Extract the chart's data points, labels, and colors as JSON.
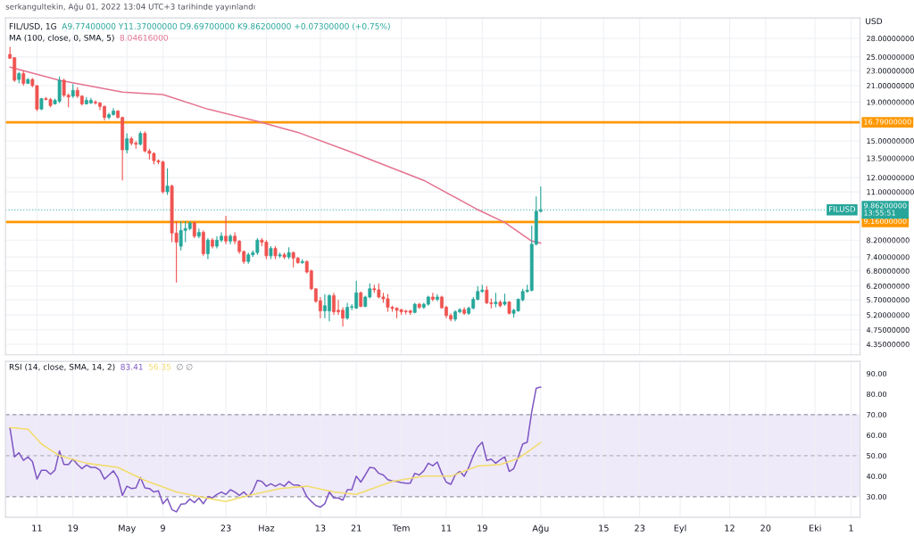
{
  "chart_data": [
    {
      "type": "candlestick",
      "title": "FIL/USD, 1G",
      "ylabel": "USD",
      "annotations": [
        "serkangultekin, Ağu 01, 2022 13:04 UTC+3 tarihinde yayınlandı",
        "A9.77400000 Y11.37000000 D9.69700000 K9.86200000 +0.07300000 (+0.75%)",
        "MA (100, close, 0, SMA, 5)",
        "8.04616000",
        {
          "text": "FILUSD",
          "x": "2022-10-10",
          "y": 9.862
        }
      ],
      "x": [
        "2022-04-05",
        "2022-04-06",
        "2022-04-07",
        "2022-04-08",
        "2022-04-09",
        "2022-04-10",
        "2022-04-11",
        "2022-04-12",
        "2022-04-13",
        "2022-04-14",
        "2022-04-15",
        "2022-04-16",
        "2022-04-17",
        "2022-04-18",
        "2022-04-19",
        "2022-04-20",
        "2022-04-21",
        "2022-04-22",
        "2022-04-23",
        "2022-04-24",
        "2022-04-25",
        "2022-04-26",
        "2022-04-27",
        "2022-04-28",
        "2022-04-29",
        "2022-04-30",
        "2022-05-01",
        "2022-05-02",
        "2022-05-03",
        "2022-05-04",
        "2022-05-05",
        "2022-05-06",
        "2022-05-07",
        "2022-05-08",
        "2022-05-09",
        "2022-05-10",
        "2022-05-11",
        "2022-05-12",
        "2022-05-13",
        "2022-05-14",
        "2022-05-15",
        "2022-05-16",
        "2022-05-17",
        "2022-05-18",
        "2022-05-19",
        "2022-05-20",
        "2022-05-21",
        "2022-05-22",
        "2022-05-23",
        "2022-05-24",
        "2022-05-25",
        "2022-05-26",
        "2022-05-27",
        "2022-05-28",
        "2022-05-29",
        "2022-05-30",
        "2022-05-31",
        "2022-06-01",
        "2022-06-02",
        "2022-06-03",
        "2022-06-04",
        "2022-06-05",
        "2022-06-06",
        "2022-06-07",
        "2022-06-08",
        "2022-06-09",
        "2022-06-10",
        "2022-06-11",
        "2022-06-12",
        "2022-06-13",
        "2022-06-14",
        "2022-06-15",
        "2022-06-16",
        "2022-06-17",
        "2022-06-18",
        "2022-06-19",
        "2022-06-20",
        "2022-06-21",
        "2022-06-22",
        "2022-06-23",
        "2022-06-24",
        "2022-06-25",
        "2022-06-26",
        "2022-06-27",
        "2022-06-28",
        "2022-06-29",
        "2022-06-30",
        "2022-07-01",
        "2022-07-02",
        "2022-07-03",
        "2022-07-04",
        "2022-07-05",
        "2022-07-06",
        "2022-07-07",
        "2022-07-08",
        "2022-07-09",
        "2022-07-10",
        "2022-07-11",
        "2022-07-12",
        "2022-07-13",
        "2022-07-14",
        "2022-07-15",
        "2022-07-16",
        "2022-07-17",
        "2022-07-18",
        "2022-07-19",
        "2022-07-20",
        "2022-07-21",
        "2022-07-22",
        "2022-07-23",
        "2022-07-24",
        "2022-07-25",
        "2022-07-26",
        "2022-07-27",
        "2022-07-28",
        "2022-07-29",
        "2022-07-30",
        "2022-07-31",
        "2022-08-01"
      ],
      "ohlc": [
        [
          25.4,
          26.6,
          24.7,
          24.8
        ],
        [
          24.9,
          25.0,
          21.5,
          21.7
        ],
        [
          21.8,
          22.8,
          21.3,
          22.6
        ],
        [
          22.6,
          23.0,
          21.0,
          21.3
        ],
        [
          21.3,
          22.0,
          21.2,
          21.8
        ],
        [
          21.8,
          22.0,
          20.8,
          21.0
        ],
        [
          21.0,
          21.1,
          18.0,
          18.2
        ],
        [
          18.2,
          19.5,
          18.1,
          19.4
        ],
        [
          19.4,
          19.6,
          19.2,
          19.3
        ],
        [
          19.3,
          19.5,
          18.4,
          18.6
        ],
        [
          18.8,
          19.4,
          18.7,
          19.2
        ],
        [
          19.1,
          22.2,
          18.9,
          21.7
        ],
        [
          21.7,
          21.9,
          19.6,
          19.8
        ],
        [
          19.8,
          20.0,
          18.4,
          19.6
        ],
        [
          19.7,
          21.2,
          19.5,
          20.4
        ],
        [
          20.4,
          20.8,
          19.5,
          19.7
        ],
        [
          19.7,
          19.8,
          18.6,
          18.8
        ],
        [
          18.8,
          19.6,
          18.7,
          19.2
        ],
        [
          18.9,
          19.5,
          18.8,
          19.2
        ],
        [
          19.0,
          19.2,
          18.7,
          18.9
        ],
        [
          18.9,
          19.0,
          18.1,
          18.5
        ],
        [
          18.5,
          18.6,
          17.0,
          17.3
        ],
        [
          17.3,
          17.8,
          17.1,
          17.6
        ],
        [
          17.6,
          18.3,
          17.5,
          18.0
        ],
        [
          18.0,
          18.1,
          17.2,
          17.3
        ],
        [
          17.3,
          17.4,
          11.8,
          14.2
        ],
        [
          14.2,
          15.7,
          13.9,
          15.2
        ],
        [
          15.2,
          15.4,
          14.6,
          14.8
        ],
        [
          14.8,
          15.0,
          14.3,
          14.7
        ],
        [
          14.7,
          15.9,
          14.6,
          15.7
        ],
        [
          15.7,
          15.9,
          14.0,
          14.1
        ],
        [
          14.1,
          14.3,
          13.4,
          13.9
        ],
        [
          13.9,
          14.0,
          13.0,
          13.3
        ],
        [
          13.3,
          13.4,
          13.0,
          13.2
        ],
        [
          13.2,
          13.3,
          10.9,
          11.0
        ],
        [
          11.0,
          12.7,
          10.8,
          11.4
        ],
        [
          11.4,
          11.5,
          8.1,
          8.56
        ],
        [
          8.56,
          9.2,
          6.33,
          8.1
        ],
        [
          7.9,
          9.2,
          7.7,
          8.7
        ],
        [
          8.7,
          9.2,
          8.1,
          8.8
        ],
        [
          8.8,
          9.2,
          8.7,
          9.1
        ],
        [
          9.1,
          9.2,
          8.3,
          8.4
        ],
        [
          8.4,
          8.8,
          8.3,
          8.6
        ],
        [
          8.6,
          8.7,
          7.45,
          7.55
        ],
        [
          7.55,
          8.3,
          7.3,
          8.2
        ],
        [
          8.2,
          8.3,
          7.8,
          7.9
        ],
        [
          7.9,
          8.4,
          7.8,
          8.2
        ],
        [
          8.2,
          8.6,
          8.1,
          8.4
        ],
        [
          8.4,
          9.5,
          8.0,
          8.15
        ],
        [
          8.15,
          8.5,
          8.0,
          8.4
        ],
        [
          8.4,
          8.6,
          8.0,
          8.15
        ],
        [
          8.15,
          8.2,
          7.55,
          7.65
        ],
        [
          7.65,
          7.7,
          7.1,
          7.2
        ],
        [
          7.2,
          7.6,
          7.1,
          7.5
        ],
        [
          7.5,
          7.7,
          7.4,
          7.6
        ],
        [
          7.6,
          8.3,
          7.5,
          8.2
        ],
        [
          8.2,
          8.3,
          7.9,
          8.1
        ],
        [
          8.1,
          8.2,
          7.3,
          7.45
        ],
        [
          7.45,
          7.9,
          7.3,
          7.8
        ],
        [
          7.8,
          7.9,
          7.3,
          7.45
        ],
        [
          7.45,
          7.6,
          7.35,
          7.5
        ],
        [
          7.5,
          7.6,
          7.3,
          7.4
        ],
        [
          7.4,
          7.85,
          7.3,
          7.6
        ],
        [
          7.6,
          7.65,
          6.95,
          7.35
        ],
        [
          7.35,
          7.4,
          7.1,
          7.15
        ],
        [
          7.15,
          7.3,
          7.1,
          7.2
        ],
        [
          7.2,
          7.25,
          6.7,
          6.75
        ],
        [
          6.8,
          6.85,
          6.05,
          6.1
        ],
        [
          6.1,
          6.1,
          5.6,
          5.65
        ],
        [
          5.67,
          5.8,
          5.1,
          5.33
        ],
        [
          5.33,
          5.9,
          5.1,
          5.5
        ],
        [
          5.33,
          5.9,
          5.0,
          5.85
        ],
        [
          5.85,
          5.95,
          5.2,
          5.3
        ],
        [
          5.35,
          5.7,
          5.2,
          5.3
        ],
        [
          5.35,
          5.45,
          4.85,
          5.1
        ],
        [
          5.1,
          5.6,
          5.05,
          5.45
        ],
        [
          5.45,
          5.55,
          5.35,
          5.47
        ],
        [
          5.42,
          6.4,
          5.4,
          5.95
        ],
        [
          5.95,
          6.0,
          5.45,
          5.48
        ],
        [
          5.48,
          5.85,
          5.45,
          5.8
        ],
        [
          5.8,
          6.3,
          5.75,
          6.1
        ],
        [
          6.1,
          6.25,
          5.95,
          6.06
        ],
        [
          6.06,
          6.3,
          5.75,
          5.8
        ],
        [
          5.8,
          5.95,
          5.6,
          5.74
        ],
        [
          5.74,
          5.9,
          5.3,
          5.45
        ],
        [
          5.45,
          5.5,
          5.3,
          5.41
        ],
        [
          5.42,
          5.45,
          5.1,
          5.35
        ],
        [
          5.37,
          5.4,
          5.2,
          5.3
        ],
        [
          5.33,
          5.36,
          5.22,
          5.3
        ],
        [
          5.33,
          5.36,
          5.2,
          5.28
        ],
        [
          5.28,
          5.6,
          5.25,
          5.55
        ],
        [
          5.55,
          5.6,
          5.4,
          5.45
        ],
        [
          5.45,
          5.6,
          5.4,
          5.55
        ],
        [
          5.55,
          5.85,
          5.5,
          5.8
        ],
        [
          5.8,
          5.95,
          5.65,
          5.72
        ],
        [
          5.72,
          5.9,
          5.65,
          5.8
        ],
        [
          5.8,
          5.85,
          5.4,
          5.43
        ],
        [
          5.45,
          5.5,
          5.1,
          5.18
        ],
        [
          5.18,
          5.25,
          5.0,
          5.07
        ],
        [
          5.07,
          5.35,
          5.0,
          5.3
        ],
        [
          5.3,
          5.42,
          5.25,
          5.37
        ],
        [
          5.37,
          5.45,
          5.2,
          5.25
        ],
        [
          5.25,
          5.47,
          5.2,
          5.42
        ],
        [
          5.42,
          5.8,
          5.38,
          5.72
        ],
        [
          5.72,
          6.2,
          5.68,
          6.0
        ],
        [
          6.0,
          6.25,
          5.95,
          6.05
        ],
        [
          6.05,
          6.2,
          5.55,
          5.6
        ],
        [
          5.6,
          5.75,
          5.41,
          5.57
        ],
        [
          5.57,
          5.95,
          5.45,
          5.62
        ],
        [
          5.62,
          5.68,
          5.45,
          5.5
        ],
        [
          5.55,
          5.92,
          5.5,
          5.63
        ],
        [
          5.63,
          5.65,
          5.22,
          5.25
        ],
        [
          5.25,
          5.4,
          5.12,
          5.35
        ],
        [
          5.33,
          5.75,
          5.3,
          5.72
        ],
        [
          5.7,
          6.1,
          5.65,
          6.0
        ],
        [
          6.0,
          6.25,
          5.95,
          6.05
        ],
        [
          6.04,
          8.96,
          6.0,
          8.0
        ],
        [
          8.0,
          10.7,
          7.94,
          9.774
        ],
        [
          9.774,
          11.37,
          9.697,
          9.862
        ]
      ],
      "colors": [
        "#ef5350",
        "#ef5350",
        "#26a69a",
        "#ef5350",
        "#26a69a",
        "#ef5350",
        "#ef5350",
        "#26a69a",
        "#ef5350",
        "#ef5350",
        "#26a69a",
        "#26a69a",
        "#ef5350",
        "#ef5350",
        "#26a69a",
        "#ef5350",
        "#ef5350",
        "#26a69a",
        "#26a69a",
        "#ef5350",
        "#ef5350",
        "#ef5350",
        "#26a69a",
        "#26a69a",
        "#ef5350",
        "#ef5350",
        "#26a69a",
        "#ef5350",
        "#ef5350",
        "#26a69a",
        "#ef5350",
        "#ef5350",
        "#ef5350",
        "#ef5350",
        "#ef5350",
        "#26a69a",
        "#ef5350",
        "#ef5350",
        "#26a69a",
        "#26a69a",
        "#26a69a",
        "#ef5350",
        "#26a69a",
        "#ef5350",
        "#26a69a",
        "#ef5350",
        "#26a69a",
        "#26a69a",
        "#ef5350",
        "#26a69a",
        "#ef5350",
        "#ef5350",
        "#ef5350",
        "#26a69a",
        "#26a69a",
        "#26a69a",
        "#ef5350",
        "#ef5350",
        "#26a69a",
        "#ef5350",
        "#26a69a",
        "#ef5350",
        "#26a69a",
        "#ef5350",
        "#ef5350",
        "#26a69a",
        "#ef5350",
        "#ef5350",
        "#ef5350",
        "#ef5350",
        "#26a69a",
        "#26a69a",
        "#ef5350",
        "#ef5350",
        "#ef5350",
        "#26a69a",
        "#26a69a",
        "#26a69a",
        "#ef5350",
        "#26a69a",
        "#26a69a",
        "#ef5350",
        "#ef5350",
        "#ef5350",
        "#ef5350",
        "#ef5350",
        "#ef5350",
        "#ef5350",
        "#ef5350",
        "#ef5350",
        "#26a69a",
        "#ef5350",
        "#26a69a",
        "#26a69a",
        "#ef5350",
        "#26a69a",
        "#ef5350",
        "#ef5350",
        "#ef5350",
        "#26a69a",
        "#26a69a",
        "#ef5350",
        "#26a69a",
        "#26a69a",
        "#26a69a",
        "#26a69a",
        "#ef5350",
        "#ef5350",
        "#26a69a",
        "#ef5350",
        "#26a69a",
        "#ef5350",
        "#26a69a",
        "#26a69a",
        "#26a69a",
        "#26a69a",
        "#26a69a",
        "#26a69a",
        "#26a69a"
      ],
      "series": [
        {
          "type": "line",
          "color": "#e57390",
          "x": [
            "2022-04-05",
            "2022-04-16",
            "2022-04-30",
            "2022-05-09",
            "2022-05-19",
            "2022-05-30",
            "2022-06-08",
            "2022-06-20",
            "2022-07-06",
            "2022-07-18",
            "2022-07-24",
            "2022-07-30",
            "2022-08-01"
          ],
          "values": [
            23.5,
            21.7,
            20.2,
            19.9,
            18.2,
            16.9,
            15.8,
            14.0,
            11.8,
            9.87,
            9.13,
            8.15,
            8.05
          ]
        }
      ],
      "log": true,
      "ylim": [
        4.08,
        31.7
      ],
      "yticks": [
        {
          "value": 4.35,
          "label": "4.35000000"
        },
        {
          "value": 4.75,
          "label": "4.75000000"
        },
        {
          "value": 5.2,
          "label": "5.20000000"
        },
        {
          "value": 5.7,
          "label": "5.70000000"
        },
        {
          "value": 6.2,
          "label": "6.20000000"
        },
        {
          "value": 6.8,
          "label": "6.80000000"
        },
        {
          "value": 7.4,
          "label": "7.40000000"
        },
        {
          "value": 8.2,
          "label": "8.20000000"
        },
        {
          "value": 11,
          "label": "11.00000000"
        },
        {
          "value": 12,
          "label": "12.00000000"
        },
        {
          "value": 13.5,
          "label": "13.50000000"
        },
        {
          "value": 15,
          "label": "15.00000000"
        },
        {
          "value": 19,
          "label": "19.00000000"
        },
        {
          "value": 21,
          "label": "21.00000000"
        },
        {
          "value": 23,
          "label": "23.00000000"
        },
        {
          "value": 25,
          "label": "25.00000000"
        },
        {
          "value": 28,
          "label": "28.00000000"
        }
      ],
      "xlim": [
        "2022-04-04",
        "2022-10-11"
      ],
      "xticks": [
        {
          "value": "2022-04-11",
          "label": null
        },
        {
          "value": "2022-04-19",
          "label": null
        },
        {
          "value": "2022-05-01",
          "label": null
        },
        {
          "value": "2022-05-09",
          "label": null
        },
        {
          "value": "2022-05-23",
          "label": null
        },
        {
          "value": "2022-06-01",
          "label": null
        },
        {
          "value": "2022-06-13",
          "label": null
        },
        {
          "value": "2022-06-21",
          "label": null
        },
        {
          "value": "2022-07-01",
          "label": null
        },
        {
          "value": "2022-07-11",
          "label": null
        },
        {
          "value": "2022-07-19",
          "label": null
        },
        {
          "value": "2022-08-01",
          "label": null
        },
        {
          "value": "2022-08-15",
          "label": null
        },
        {
          "value": "2022-08-23",
          "label": null
        },
        {
          "value": "2022-09-01",
          "label": null
        },
        {
          "value": "2022-09-12",
          "label": null
        },
        {
          "value": "2022-09-20",
          "label": null
        },
        {
          "value": "2022-10-01",
          "label": null
        },
        {
          "value": "2022-10-09",
          "label": null
        }
      ],
      "tick_labels": "y",
      "ref_lines": [
        {
          "axis": "y",
          "value": 16.79,
          "label": "16.79000000",
          "color": "#ff9800",
          "line_style": "solid"
        },
        {
          "axis": "y",
          "value": 9.16,
          "label": "9.16000000",
          "color": "#ff9800",
          "line_style": "solid"
        },
        {
          "axis": "y",
          "value": 9.862,
          "label": "9.86200000\n13:55:51",
          "color": "#26a69a",
          "line_style": "dotted"
        }
      ],
      "grid": true
    },
    {
      "type": "line",
      "title": "RSI (14, close, SMA, 14, 2)",
      "annotations": [
        "83.41",
        "56.35",
        "∅ ∅"
      ],
      "x": [
        "2022-04-05",
        "2022-04-06",
        "2022-04-07",
        "2022-04-08",
        "2022-04-09",
        "2022-04-10",
        "2022-04-11",
        "2022-04-12",
        "2022-04-13",
        "2022-04-14",
        "2022-04-15",
        "2022-04-16",
        "2022-04-17",
        "2022-04-18",
        "2022-04-19",
        "2022-04-20",
        "2022-04-21",
        "2022-04-22",
        "2022-04-23",
        "2022-04-24",
        "2022-04-25",
        "2022-04-26",
        "2022-04-27",
        "2022-04-28",
        "2022-04-29",
        "2022-04-30",
        "2022-05-01",
        "2022-05-02",
        "2022-05-03",
        "2022-05-04",
        "2022-05-05",
        "2022-05-06",
        "2022-05-07",
        "2022-05-08",
        "2022-05-09",
        "2022-05-10",
        "2022-05-11",
        "2022-05-12",
        "2022-05-13",
        "2022-05-14",
        "2022-05-15",
        "2022-05-16",
        "2022-05-17",
        "2022-05-18",
        "2022-05-19",
        "2022-05-20",
        "2022-05-21",
        "2022-05-22",
        "2022-05-23",
        "2022-05-24",
        "2022-05-25",
        "2022-05-26",
        "2022-05-27",
        "2022-05-28",
        "2022-05-29",
        "2022-05-30",
        "2022-05-31",
        "2022-06-01",
        "2022-06-02",
        "2022-06-03",
        "2022-06-04",
        "2022-06-05",
        "2022-06-06",
        "2022-06-07",
        "2022-06-08",
        "2022-06-09",
        "2022-06-10",
        "2022-06-11",
        "2022-06-12",
        "2022-06-13",
        "2022-06-14",
        "2022-06-15",
        "2022-06-16",
        "2022-06-17",
        "2022-06-18",
        "2022-06-19",
        "2022-06-20",
        "2022-06-21",
        "2022-06-22",
        "2022-06-23",
        "2022-06-24",
        "2022-06-25",
        "2022-06-26",
        "2022-06-27",
        "2022-06-28",
        "2022-06-29",
        "2022-06-30",
        "2022-07-01",
        "2022-07-02",
        "2022-07-03",
        "2022-07-04",
        "2022-07-05",
        "2022-07-06",
        "2022-07-07",
        "2022-07-08",
        "2022-07-09",
        "2022-07-10",
        "2022-07-11",
        "2022-07-12",
        "2022-07-13",
        "2022-07-14",
        "2022-07-15",
        "2022-07-16",
        "2022-07-17",
        "2022-07-18",
        "2022-07-19",
        "2022-07-20",
        "2022-07-21",
        "2022-07-22",
        "2022-07-23",
        "2022-07-24",
        "2022-07-25",
        "2022-07-26",
        "2022-07-27",
        "2022-07-28",
        "2022-07-29",
        "2022-07-30",
        "2022-07-31",
        "2022-08-01"
      ],
      "series": [
        {
          "type": "line",
          "color": "#7e57c2",
          "values": [
            63.5,
            49.4,
            51.4,
            47.7,
            49.4,
            47.1,
            38.6,
            42.9,
            42.9,
            40.9,
            42.9,
            52.3,
            45.7,
            45.7,
            48.3,
            45.7,
            43.7,
            45.4,
            44.3,
            44.3,
            42.9,
            38.6,
            40.6,
            42.6,
            39.1,
            30.6,
            35.1,
            34.0,
            34.3,
            39.4,
            34.3,
            34.0,
            32.3,
            32.9,
            26.6,
            29.1,
            23.7,
            22.6,
            26.3,
            26.6,
            28.9,
            27.1,
            29.4,
            26.6,
            30.0,
            29.4,
            31.1,
            32.3,
            31.1,
            33.4,
            32.3,
            30.6,
            32.3,
            30.0,
            32.9,
            38.0,
            37.4,
            35.1,
            36.3,
            35.1,
            36.3,
            35.1,
            37.4,
            35.7,
            35.7,
            34.6,
            30.0,
            27.7,
            25.7,
            24.9,
            26.6,
            32.3,
            29.4,
            29.4,
            28.3,
            33.4,
            33.4,
            40.0,
            37.1,
            40.6,
            44.3,
            44.0,
            41.4,
            40.6,
            38.3,
            37.7,
            37.4,
            36.9,
            36.6,
            36.6,
            41.4,
            40.6,
            42.6,
            46.3,
            45.1,
            46.9,
            41.4,
            37.1,
            36.0,
            40.6,
            42.3,
            40.0,
            44.3,
            50.0,
            54.3,
            56.6,
            47.7,
            48.3,
            46.3,
            48.0,
            49.4,
            42.3,
            43.7,
            49.4,
            55.7,
            56.6,
            71.4,
            82.9,
            83.4
          ]
        },
        {
          "type": "line",
          "color": "#f2dc6b",
          "x": [
            "2022-04-05",
            "2022-04-09",
            "2022-04-12",
            "2022-04-16",
            "2022-04-22",
            "2022-04-29",
            "2022-05-05",
            "2022-05-12",
            "2022-05-17",
            "2022-05-23",
            "2022-05-28",
            "2022-06-04",
            "2022-06-10",
            "2022-06-16",
            "2022-06-21",
            "2022-06-29",
            "2022-07-06",
            "2022-07-12",
            "2022-07-18",
            "2022-07-23",
            "2022-07-27",
            "2022-08-01"
          ],
          "values": [
            63.7,
            62.9,
            55.7,
            50.0,
            46.3,
            44.3,
            38.0,
            32.3,
            30.0,
            27.7,
            30.6,
            34.0,
            35.1,
            32.3,
            31.1,
            37.4,
            40.0,
            40.0,
            44.9,
            45.7,
            48.6,
            56.4
          ]
        }
      ],
      "ylim": [
        20,
        96
      ],
      "yticks": [
        {
          "value": 30,
          "label": "30.00"
        },
        {
          "value": 40,
          "label": "40.00"
        },
        {
          "value": 50,
          "label": "50.00"
        },
        {
          "value": 60,
          "label": "60.00"
        },
        {
          "value": 70,
          "label": "70.00"
        },
        {
          "value": 80,
          "label": "80.00"
        },
        {
          "value": 90,
          "label": "90.00"
        }
      ],
      "xlim": [
        "2022-04-04",
        "2022-10-11"
      ],
      "xticks": [
        {
          "value": "2022-04-11",
          "label": "11"
        },
        {
          "value": "2022-04-19",
          "label": "19"
        },
        {
          "value": "2022-05-01",
          "label": "May"
        },
        {
          "value": "2022-05-09",
          "label": "9"
        },
        {
          "value": "2022-05-23",
          "label": "23"
        },
        {
          "value": "2022-06-01",
          "label": "Haz"
        },
        {
          "value": "2022-06-13",
          "label": "13"
        },
        {
          "value": "2022-06-21",
          "label": "21"
        },
        {
          "value": "2022-07-01",
          "label": "Tem"
        },
        {
          "value": "2022-07-11",
          "label": "11"
        },
        {
          "value": "2022-07-19",
          "label": "19"
        },
        {
          "value": "2022-08-01",
          "label": "Ağu"
        },
        {
          "value": "2022-08-15",
          "label": "15"
        },
        {
          "value": "2022-08-23",
          "label": "23"
        },
        {
          "value": "2022-09-01",
          "label": "Eyl"
        },
        {
          "value": "2022-09-12",
          "label": "12"
        },
        {
          "value": "2022-09-20",
          "label": "20"
        },
        {
          "value": "2022-10-01",
          "label": "Eki"
        },
        {
          "value": "2022-10-09",
          "label": "1"
        }
      ],
      "bands": [
        {
          "axis": "y",
          "from": 30,
          "to": 70,
          "color": "#efeafa"
        }
      ],
      "ref_lines": [
        {
          "axis": "y",
          "value": 70,
          "color": "#9598a1",
          "line_style": "dashed"
        },
        {
          "axis": "y",
          "value": 50,
          "color": "#b2b5be",
          "line_style": "dashed"
        },
        {
          "axis": "y",
          "value": 30,
          "color": "#9598a1",
          "line_style": "dashed"
        }
      ],
      "grid": "x"
    }
  ]
}
